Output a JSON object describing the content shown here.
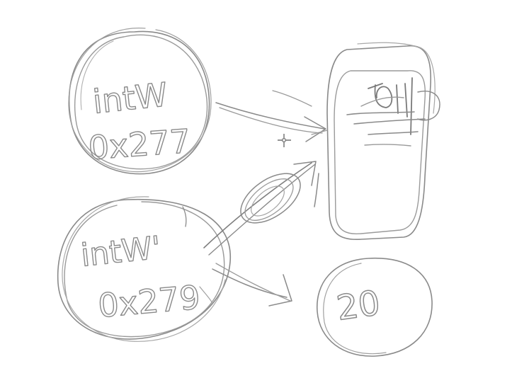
{
  "sketch": {
    "top_node": {
      "type_label": "intW",
      "address_label": "0x277"
    },
    "bottom_node": {
      "type_label": "intW'",
      "address_label": "0x279"
    },
    "value_node": {
      "value_label": "20"
    }
  },
  "colors": {
    "pen": "#8a8a8a",
    "pen_light": "#a8a8a8",
    "pen_dark": "#6f6f6f",
    "background": "#ffffff"
  },
  "icons": {
    "cursor": "crosshair-cursor-icon"
  }
}
